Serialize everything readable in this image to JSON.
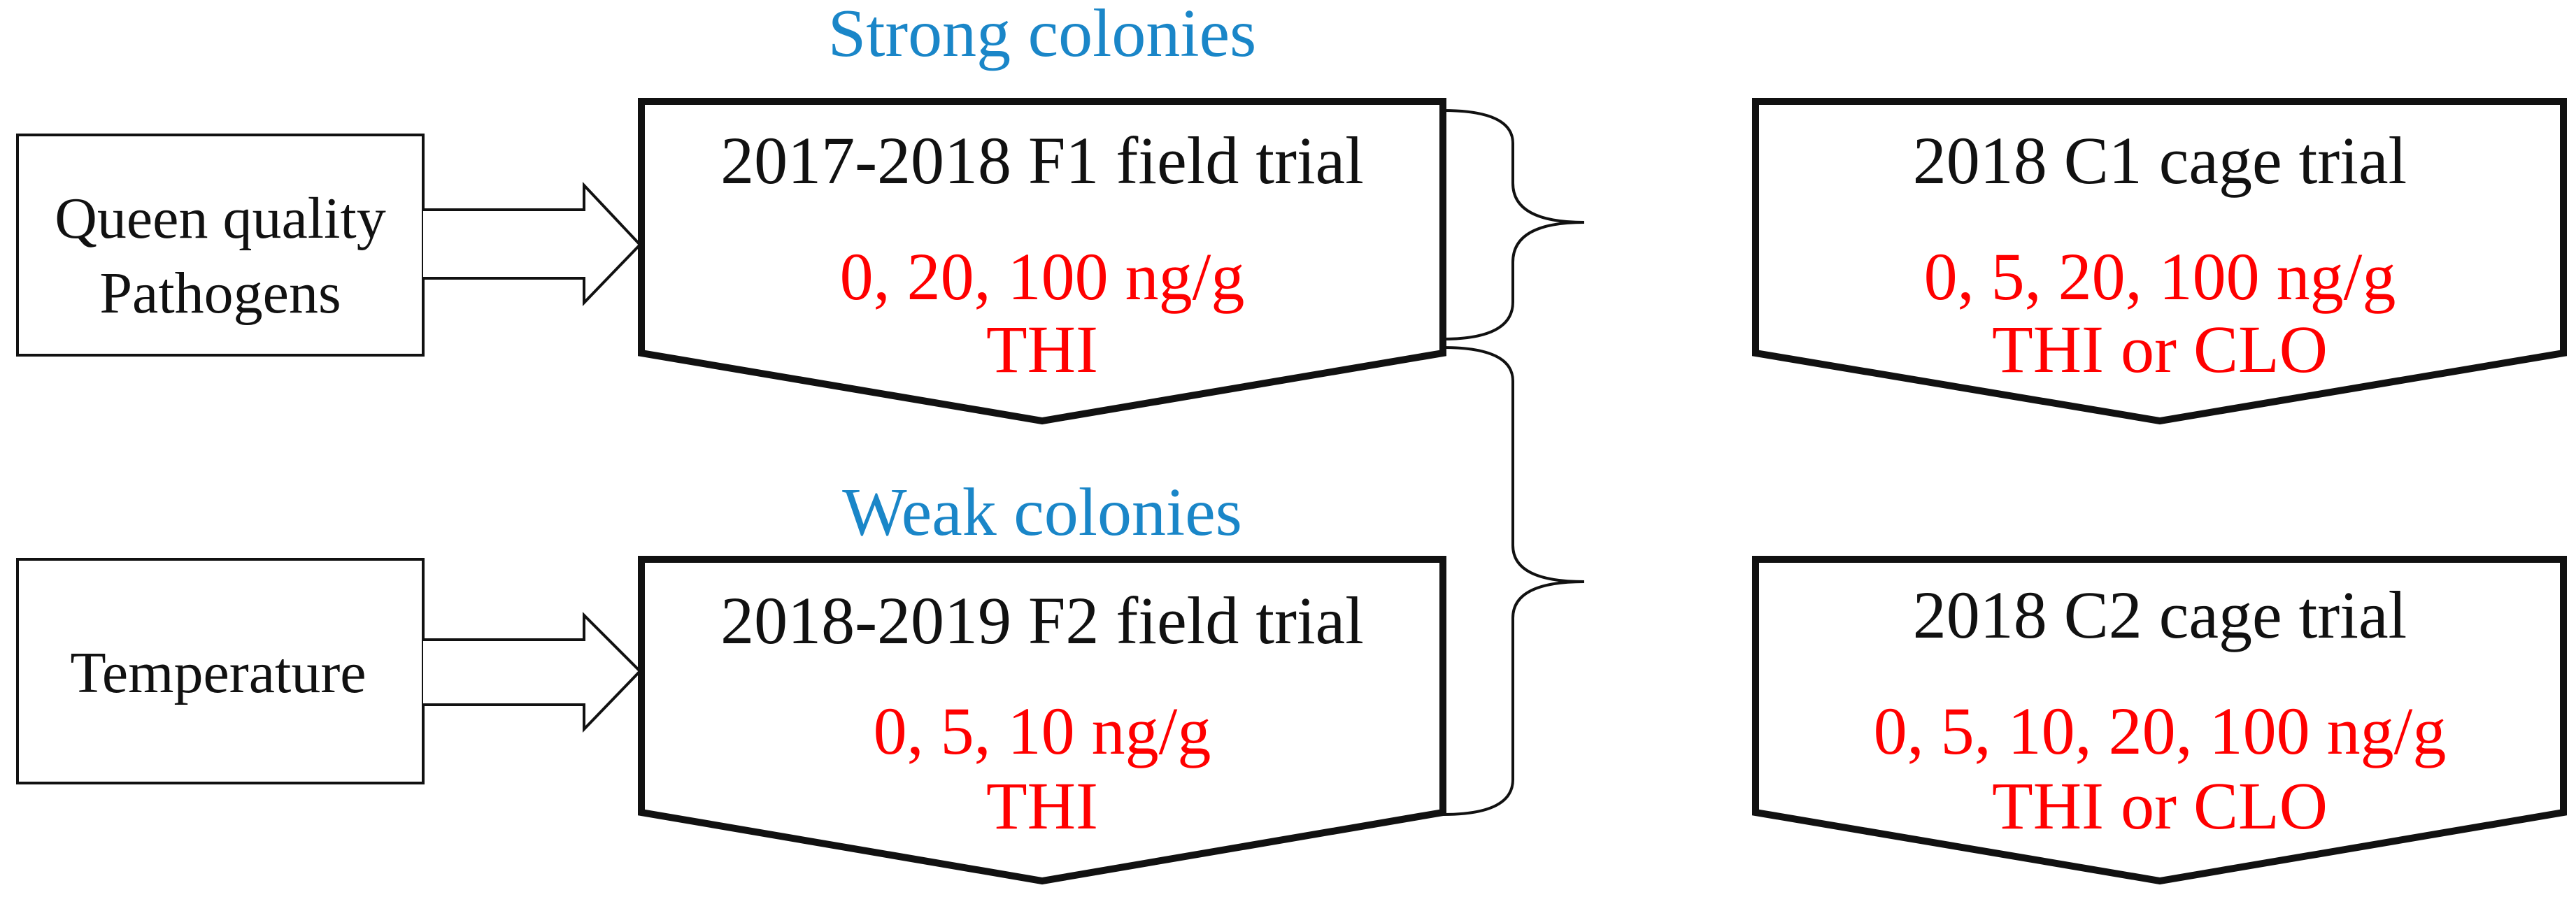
{
  "colors": {
    "title": "#1a86c8",
    "dose": "#ff0000",
    "text": "#111111",
    "stroke": "#111111"
  },
  "titles": {
    "strong": "Strong colonies",
    "weak": "Weak colonies"
  },
  "inputs": {
    "top": {
      "line1": "Queen quality",
      "line2": "Pathogens"
    },
    "bottom": {
      "line1": "Temperature"
    }
  },
  "trials": {
    "f1": {
      "title": "2017-2018 F1 field trial",
      "doses": "0, 20, 100 ng/g",
      "compound": "THI"
    },
    "f2": {
      "title": "2018-2019 F2 field trial",
      "doses": "0, 5, 10 ng/g",
      "compound": "THI"
    },
    "c1": {
      "title": "2018 C1 cage trial",
      "doses": "0, 5, 20, 100 ng/g",
      "compound": "THI or CLO"
    },
    "c2": {
      "title": "2018 C2 cage trial",
      "doses": "0, 5, 10, 20, 100 ng/g",
      "compound": "THI or CLO"
    }
  }
}
